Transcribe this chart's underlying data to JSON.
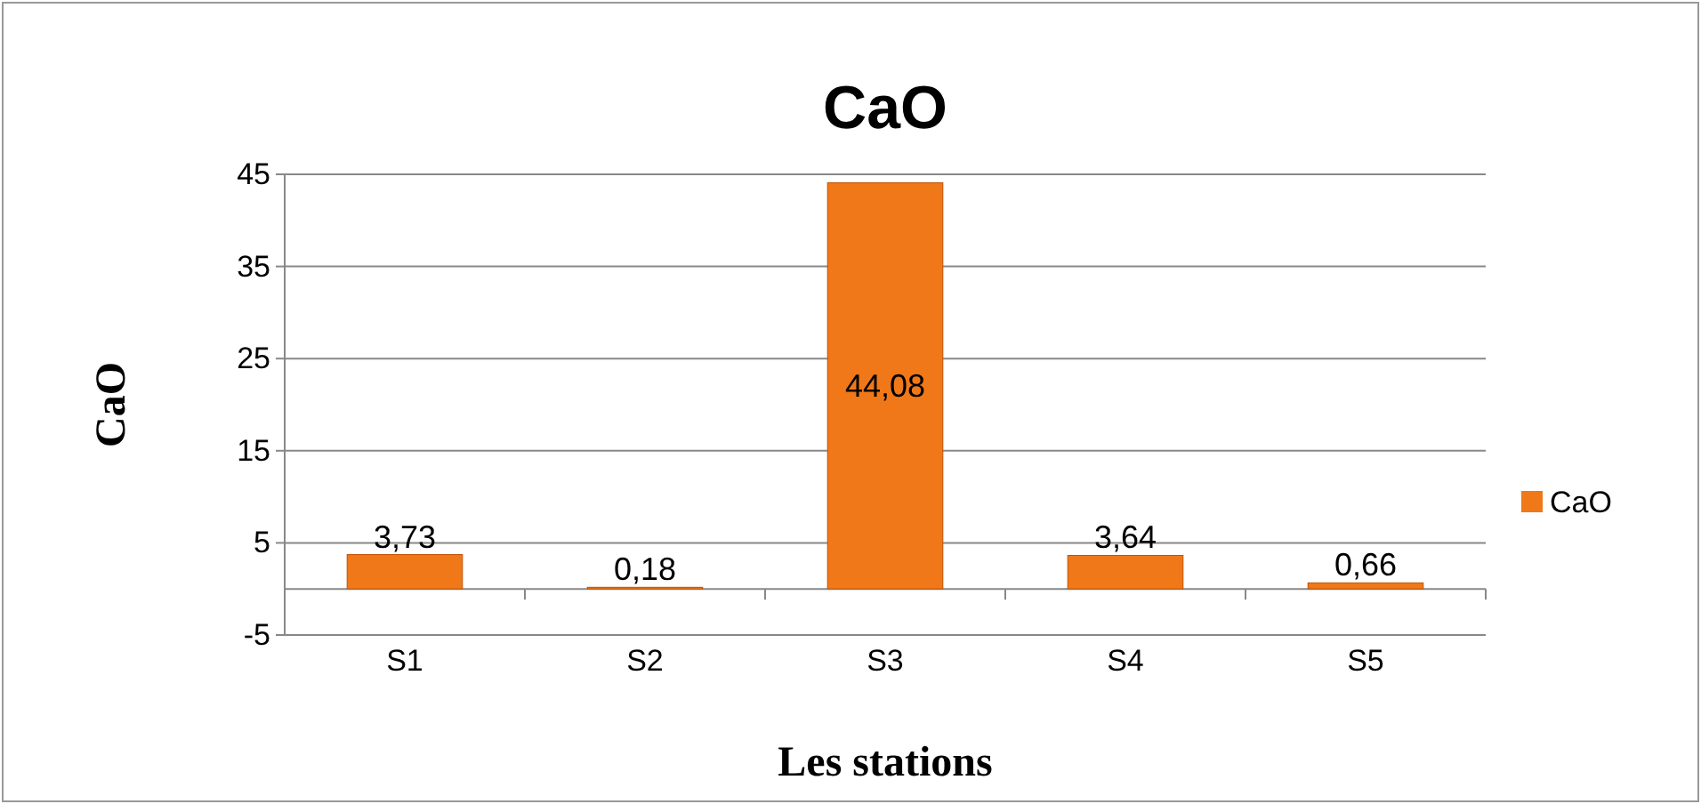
{
  "chart_data": {
    "type": "bar",
    "title": "CaO",
    "xlabel": "Les stations",
    "ylabel": "CaO",
    "categories": [
      "S1",
      "S2",
      "S3",
      "S4",
      "S5"
    ],
    "series": [
      {
        "name": "CaO",
        "color": "#f07818",
        "values": [
          3.73,
          0.18,
          44.08,
          3.64,
          0.66
        ],
        "value_labels": [
          "3,73",
          "0,18",
          "44,08",
          "3,64",
          "0,66"
        ]
      }
    ],
    "ylim": [
      -5,
      45
    ],
    "yticks": [
      -5,
      5,
      15,
      25,
      35,
      45
    ],
    "grid": "y",
    "legend": "right"
  }
}
